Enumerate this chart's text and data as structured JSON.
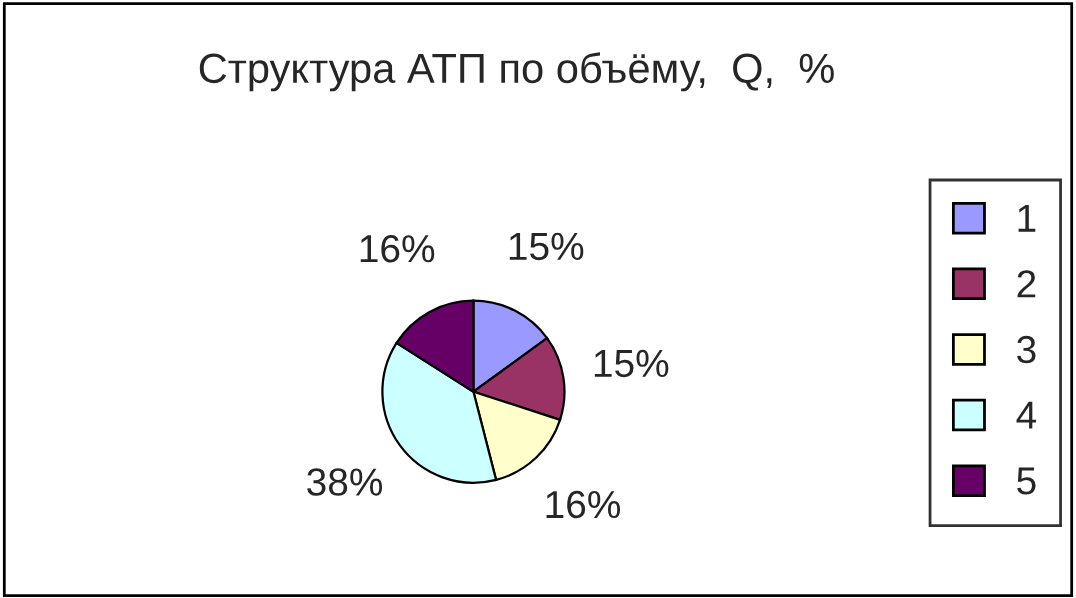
{
  "chart_data": {
    "type": "pie",
    "title": "Структура АТП по объёму,  Q,  %",
    "categories": [
      "1",
      "2",
      "3",
      "4",
      "5"
    ],
    "values": [
      15,
      15,
      16,
      38,
      16
    ],
    "value_labels": [
      "15%",
      "15%",
      "16%",
      "38%",
      "16%"
    ],
    "colors": [
      "#9999ff",
      "#993366",
      "#ffffcc",
      "#ccffff",
      "#660066"
    ],
    "legend": "right"
  }
}
